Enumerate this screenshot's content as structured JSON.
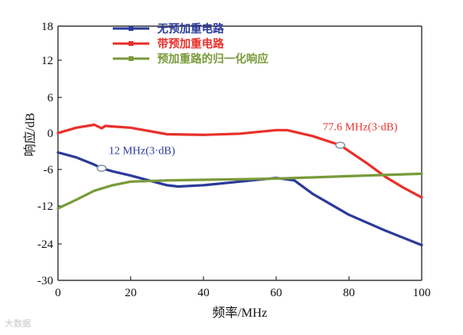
{
  "chart_data": {
    "type": "line",
    "xlabel": "频率/MHz",
    "ylabel": "响应/dB",
    "xlim": [
      0,
      100
    ],
    "ylim": [
      -30,
      18
    ],
    "xticks": [
      0,
      20,
      40,
      60,
      80,
      100
    ],
    "yticks": [
      18,
      12,
      6,
      0,
      -6,
      -12,
      -24,
      -30
    ],
    "ytick_positions": [
      18,
      12,
      6,
      0,
      -6,
      -12,
      -24,
      -30
    ],
    "legend_position": "top-center",
    "series": [
      {
        "name": "无预加重电路",
        "color": "#2b3a9a",
        "x": [
          0,
          5,
          10,
          12,
          15,
          20,
          25,
          30,
          33,
          40,
          50,
          60,
          65,
          70,
          80,
          90,
          100
        ],
        "y": [
          -3.2,
          -4.0,
          -5.2,
          -5.8,
          -6.3,
          -7.0,
          -7.8,
          -8.6,
          -8.8,
          -8.6,
          -8.0,
          -7.4,
          -7.8,
          -10.0,
          -14.8,
          -19.8,
          -24.2
        ]
      },
      {
        "name": "带预加重电路",
        "color": "#e8302a",
        "x": [
          0,
          5,
          10,
          12,
          13,
          20,
          30,
          40,
          50,
          60,
          63,
          70,
          77.6,
          85,
          90,
          95,
          100
        ],
        "y": [
          0.0,
          0.9,
          1.4,
          0.8,
          1.2,
          0.9,
          -0.2,
          -0.3,
          -0.1,
          0.5,
          0.5,
          -0.5,
          -2.0,
          -5.0,
          -7.2,
          -9.0,
          -10.6
        ]
      },
      {
        "name": "预加重路的归一化响应",
        "color": "#7a9a3a",
        "x": [
          0,
          5,
          10,
          15,
          20,
          30,
          40,
          50,
          60,
          70,
          80,
          90,
          100
        ],
        "y": [
          -12.8,
          -11.0,
          -9.5,
          -8.6,
          -8.0,
          -7.8,
          -7.7,
          -7.6,
          -7.5,
          -7.3,
          -7.1,
          -6.9,
          -6.7
        ]
      }
    ],
    "annotations": [
      {
        "text": "12 MHz(3·dB)",
        "x": 12,
        "y": -5.8,
        "color": "#2b3a9a"
      },
      {
        "text": "77.6 MHz(3·dB)",
        "x": 77.6,
        "y": -2.0,
        "color": "#e8302a"
      }
    ]
  },
  "watermark": "大数据"
}
